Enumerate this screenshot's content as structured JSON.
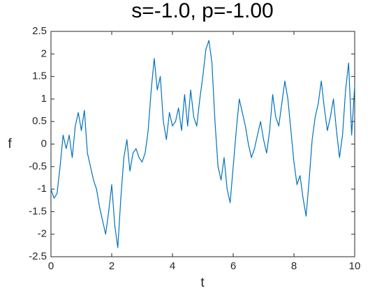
{
  "chart_data": {
    "type": "line",
    "title": "s=-1.0, p=-1.00",
    "xlabel": "t",
    "ylabel": "f",
    "x": [
      0,
      0.1,
      0.2,
      0.3,
      0.4,
      0.5,
      0.6,
      0.7,
      0.8,
      0.9,
      1,
      1.1,
      1.2,
      1.3,
      1.4,
      1.5,
      1.6,
      1.7,
      1.8,
      1.9,
      2,
      2.1,
      2.2,
      2.3,
      2.4,
      2.5,
      2.6,
      2.7,
      2.8,
      2.9,
      3,
      3.1,
      3.2,
      3.3,
      3.4,
      3.5,
      3.6,
      3.7,
      3.8,
      3.9,
      4,
      4.1,
      4.2,
      4.3,
      4.4,
      4.5,
      4.6,
      4.7,
      4.8,
      4.9,
      5,
      5.1,
      5.2,
      5.3,
      5.4,
      5.5,
      5.6,
      5.7,
      5.8,
      5.9,
      6,
      6.1,
      6.2,
      6.3,
      6.4,
      6.5,
      6.6,
      6.7,
      6.8,
      6.9,
      7,
      7.1,
      7.2,
      7.3,
      7.4,
      7.5,
      7.6,
      7.7,
      7.8,
      7.9,
      8,
      8.1,
      8.2,
      8.3,
      8.4,
      8.5,
      8.6,
      8.7,
      8.8,
      8.9,
      9,
      9.1,
      9.2,
      9.3,
      9.4,
      9.5,
      9.6,
      9.7,
      9.8,
      9.9,
      10
    ],
    "values": [
      -1.0,
      -1.2,
      -1.1,
      -0.5,
      0.2,
      -0.1,
      0.2,
      -0.3,
      0.4,
      0.7,
      0.3,
      0.75,
      -0.2,
      -0.5,
      -0.8,
      -1.0,
      -1.4,
      -1.7,
      -2.0,
      -1.5,
      -0.9,
      -1.8,
      -2.3,
      -1.2,
      -0.3,
      0.1,
      -0.6,
      -0.2,
      -0.1,
      -0.3,
      -0.4,
      -0.2,
      0.3,
      1.2,
      1.9,
      1.2,
      1.5,
      0.5,
      0.1,
      0.7,
      0.4,
      0.5,
      0.8,
      0.3,
      1.1,
      0.4,
      1.2,
      0.6,
      0.4,
      1.0,
      1.5,
      2.1,
      2.3,
      1.8,
      0.5,
      -0.5,
      -0.8,
      -0.3,
      -1.0,
      -1.3,
      -0.5,
      0.3,
      1.0,
      0.7,
      0.4,
      0.0,
      -0.3,
      -0.1,
      0.2,
      0.5,
      0.1,
      -0.2,
      0.3,
      1.1,
      0.6,
      0.4,
      0.9,
      1.4,
      1.0,
      0.3,
      -0.4,
      -0.9,
      -0.7,
      -1.2,
      -1.6,
      -0.8,
      0.1,
      0.6,
      0.9,
      1.4,
      0.8,
      0.3,
      0.6,
      1.0,
      0.3,
      -0.3,
      0.2,
      1.2,
      1.8,
      0.2,
      1.3
    ],
    "color": "#0072bd",
    "xlim": [
      0,
      10
    ],
    "xticks": [
      0,
      2,
      4,
      6,
      8,
      10
    ],
    "ylim": [
      -2.5,
      2.5
    ],
    "yticks": [
      -2.5,
      -2,
      -1.5,
      -1,
      -0.5,
      0,
      0.5,
      1,
      1.5,
      2,
      2.5
    ],
    "grid": false
  }
}
